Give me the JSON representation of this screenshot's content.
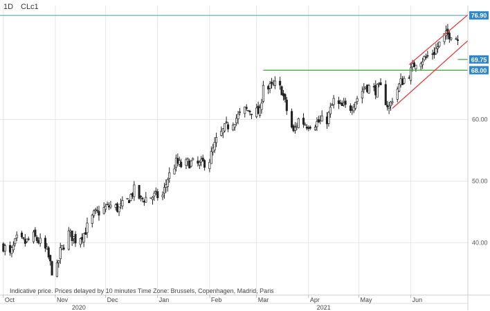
{
  "header": {
    "timeframe": "1D",
    "symbol": "CLc1"
  },
  "note": "Indicative price. Prices delayed by 10 minutes    Time Zone: Brussels, Copenhagen, Madrid, Paris",
  "colors": {
    "candle": "#222222",
    "grid": "#e6e6e6",
    "resistance_line": "#56b9d6",
    "horizontal_lines": "#3aa63a",
    "channel_lines": "#e23b3b",
    "price_tag": "#2f86c8"
  },
  "chart_data": {
    "type": "candlestick",
    "title": "",
    "xlabel": "",
    "ylabel": "",
    "ylim": [
      31.5,
      78.5
    ],
    "y_ticks": [
      40,
      50,
      60
    ],
    "y_tick_labels": [
      "40.00",
      "50.00",
      "60.00"
    ],
    "x_range": [
      "2020-09-29",
      "2021-07-05"
    ],
    "month_labels": [
      {
        "label": "Oct",
        "date": "2020-10-01"
      },
      {
        "label": "Nov",
        "date": "2020-11-01"
      },
      {
        "label": "Dec",
        "date": "2020-12-01"
      },
      {
        "label": "Jan",
        "date": "2021-01-01"
      },
      {
        "label": "Feb",
        "date": "2021-02-01"
      },
      {
        "label": "Mar",
        "date": "2021-03-01"
      },
      {
        "label": "Apr",
        "date": "2021-04-01"
      },
      {
        "label": "May",
        "date": "2021-05-01"
      },
      {
        "label": "Jun",
        "date": "2021-06-01"
      }
    ],
    "year_labels": [
      {
        "label": "2020",
        "date": "2020-11-15"
      },
      {
        "label": "2021",
        "date": "2021-04-10"
      }
    ],
    "price_series": [
      [
        "2020-10-01",
        39.5
      ],
      [
        "2020-10-05",
        38.0
      ],
      [
        "2020-10-09",
        40.5
      ],
      [
        "2020-10-14",
        40.0
      ],
      [
        "2020-10-19",
        41.0
      ],
      [
        "2020-10-23",
        40.0
      ],
      [
        "2020-10-27",
        38.5
      ],
      [
        "2020-10-30",
        35.5
      ],
      [
        "2020-11-02",
        35.8
      ],
      [
        "2020-11-04",
        38.5
      ],
      [
        "2020-11-09",
        41.5
      ],
      [
        "2020-11-13",
        40.5
      ],
      [
        "2020-11-18",
        41.5
      ],
      [
        "2020-11-24",
        44.5
      ],
      [
        "2020-11-30",
        45.5
      ],
      [
        "2020-12-04",
        46.0
      ],
      [
        "2020-12-09",
        45.5
      ],
      [
        "2020-12-14",
        46.8
      ],
      [
        "2020-12-18",
        48.5
      ],
      [
        "2020-12-22",
        47.0
      ],
      [
        "2020-12-28",
        47.5
      ],
      [
        "2021-01-04",
        47.6
      ],
      [
        "2021-01-07",
        50.5
      ],
      [
        "2021-01-12",
        53.0
      ],
      [
        "2021-01-15",
        52.5
      ],
      [
        "2021-01-20",
        53.0
      ],
      [
        "2021-01-26",
        52.6
      ],
      [
        "2021-02-01",
        53.5
      ],
      [
        "2021-02-05",
        56.5
      ],
      [
        "2021-02-10",
        58.5
      ],
      [
        "2021-02-16",
        60.0
      ],
      [
        "2021-02-22",
        61.5
      ],
      [
        "2021-02-26",
        61.5
      ],
      [
        "2021-03-03",
        61.0
      ],
      [
        "2021-03-05",
        66.0
      ],
      [
        "2021-03-08",
        65.0
      ],
      [
        "2021-03-12",
        65.6
      ],
      [
        "2021-03-16",
        64.8
      ],
      [
        "2021-03-19",
        61.5
      ],
      [
        "2021-03-23",
        57.8
      ],
      [
        "2021-03-26",
        60.0
      ],
      [
        "2021-03-31",
        59.2
      ],
      [
        "2021-04-06",
        59.5
      ],
      [
        "2021-04-12",
        60.0
      ],
      [
        "2021-04-16",
        63.0
      ],
      [
        "2021-04-20",
        62.0
      ],
      [
        "2021-04-26",
        62.0
      ],
      [
        "2021-04-30",
        63.5
      ],
      [
        "2021-05-05",
        65.5
      ],
      [
        "2021-05-10",
        64.8
      ],
      [
        "2021-05-14",
        65.0
      ],
      [
        "2021-05-19",
        61.8
      ],
      [
        "2021-05-21",
        63.5
      ],
      [
        "2021-05-26",
        66.0
      ],
      [
        "2021-06-01",
        67.8
      ],
      [
        "2021-06-04",
        69.5
      ],
      [
        "2021-06-10",
        70.0
      ],
      [
        "2021-06-15",
        71.0
      ],
      [
        "2021-06-21",
        73.5
      ],
      [
        "2021-06-25",
        74.0
      ],
      [
        "2021-06-29",
        73.0
      ]
    ],
    "horizontal_lines": [
      {
        "value": 76.9,
        "label": "76.90",
        "color": "#56b9d6",
        "start": "2020-09-29"
      },
      {
        "value": 69.75,
        "label": "69.75",
        "color": "#3aa63a",
        "start": "2021-06-29"
      },
      {
        "value": 68.0,
        "label": "68.00",
        "color": "#3aa63a",
        "start": "2021-03-05"
      }
    ],
    "channel_lines": [
      {
        "from": [
          "2021-05-21",
          61.8
        ],
        "to": [
          "2021-07-05",
          72.8
        ]
      },
      {
        "from": [
          "2021-05-31",
          68.9
        ],
        "to": [
          "2021-07-05",
          77.0
        ]
      }
    ],
    "grid": true
  }
}
